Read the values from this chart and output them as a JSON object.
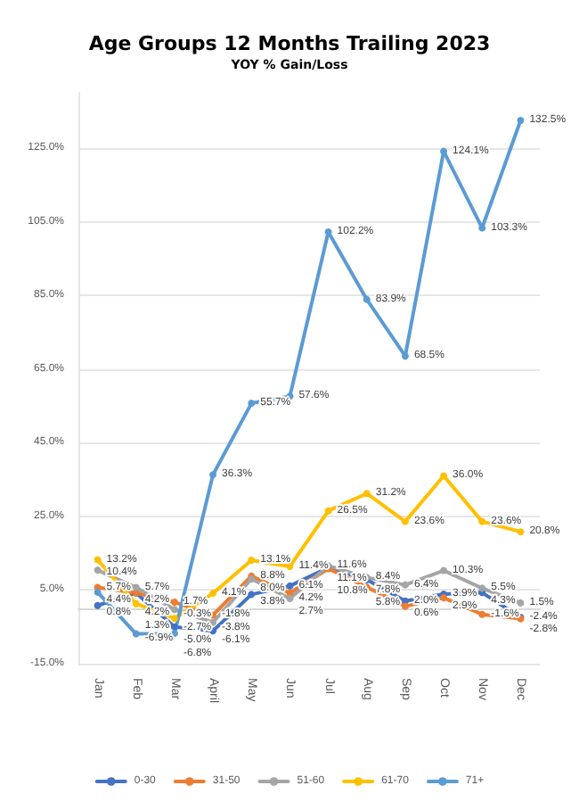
{
  "chart_data": {
    "type": "line",
    "title": "Age Groups 12 Months Trailing 2023",
    "subtitle": "YOY % Gain/Loss",
    "categories": [
      "Jan",
      "Feb",
      "Mar",
      "April",
      "May",
      "Jun",
      "Jul",
      "Aug",
      "Sep",
      "Oct",
      "Nov",
      "Dec"
    ],
    "series": [
      {
        "name": "0-30",
        "color": "#4472c4",
        "values": [
          0.8,
          4.2,
          -5.0,
          -6.1,
          3.8,
          6.1,
          11.1,
          7.8,
          2.0,
          3.9,
          4.3,
          -2.4
        ],
        "value_labels": [
          "0.8%",
          "4.2%",
          "-5.0%",
          "-6.1%",
          "3.8%",
          "6.1%",
          "11.1%",
          "7.8%",
          "2.0%",
          "3.9%",
          "4.3%",
          "-2.4%"
        ]
      },
      {
        "name": "31-50",
        "color": "#ed7d31",
        "values": [
          5.7,
          4.2,
          1.7,
          -1.8,
          8.8,
          4.2,
          10.8,
          5.8,
          0.6,
          2.9,
          -1.6,
          -2.8
        ],
        "value_labels": [
          "5.7%",
          "4.2%",
          "1.7%",
          "-1.8%",
          "8.8%",
          "4.2%",
          "10.8%",
          "5.8%",
          "0.6%",
          "2.9%",
          "-1.6%",
          "-2.8%"
        ]
      },
      {
        "name": "51-60",
        "color": "#a5a5a5",
        "values": [
          10.4,
          5.7,
          -0.3,
          -3.8,
          8.0,
          2.7,
          11.6,
          8.4,
          6.4,
          10.3,
          5.5,
          1.5
        ],
        "value_labels": [
          "10.4%",
          "5.7%",
          "-0.3%",
          "-3.8%",
          "8.0%",
          "2.7%",
          "11.6%",
          "8.4%",
          "6.4%",
          "10.3%",
          "5.5%",
          "1.5%"
        ]
      },
      {
        "name": "61-70",
        "color": "#ffc000",
        "values": [
          13.2,
          1.3,
          -2.7,
          4.1,
          13.1,
          11.4,
          26.5,
          31.2,
          23.6,
          36.0,
          23.6,
          20.8
        ],
        "value_labels": [
          "13.2%",
          "1.3%",
          "-2.7%",
          "4.1%",
          "13.1%",
          "11.4%",
          "26.5%",
          "31.2%",
          "23.6%",
          "36.0%",
          "23.6%",
          "20.8%"
        ]
      },
      {
        "name": "71+",
        "color": "#5b9bd5",
        "values": [
          4.4,
          -6.9,
          -6.8,
          36.3,
          55.7,
          57.6,
          102.2,
          83.9,
          68.5,
          124.1,
          103.3,
          132.5
        ],
        "value_labels": [
          "4.4%",
          "-6.9%",
          "-6.8%",
          "36.3%",
          "55.7%",
          "57.6%",
          "102.2%",
          "83.9%",
          "68.5%",
          "124.1%",
          "103.3%",
          "132.5%"
        ]
      }
    ],
    "ylim": [
      -15,
      140
    ],
    "yticks": [
      {
        "value": -15,
        "label": "-15.0%"
      },
      {
        "value": 5,
        "label": "5.0%"
      },
      {
        "value": 25,
        "label": "25.0%"
      },
      {
        "value": 45,
        "label": "45.0%"
      },
      {
        "value": 65,
        "label": "65.0%"
      },
      {
        "value": 85,
        "label": "85.0%"
      },
      {
        "value": 105,
        "label": "105.0%"
      },
      {
        "value": 125,
        "label": "125.0%"
      }
    ],
    "grid": "y",
    "legend": "bottom",
    "marker": "circle",
    "line_style": "solid"
  }
}
